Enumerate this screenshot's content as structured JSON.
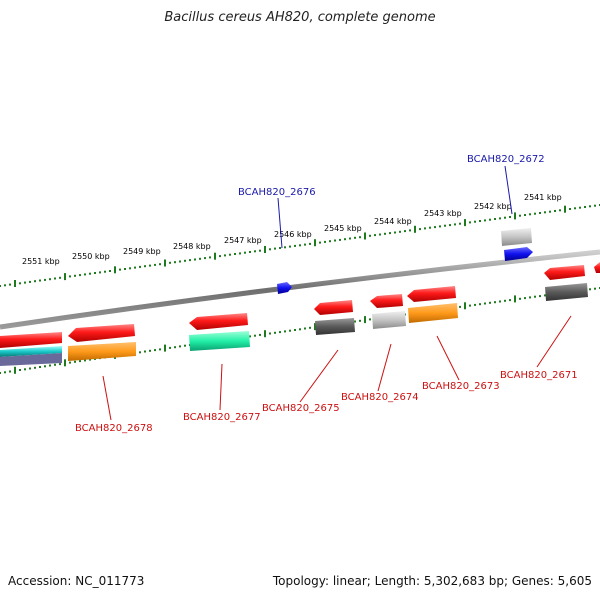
{
  "title": "Bacillus cereus AH820, complete genome",
  "footer": {
    "accession": "Accession: NC_011773",
    "topology": "Topology: linear; Length: 5,302,683 bp; Genes: 5,605"
  },
  "colors": {
    "forward_label": "#1a1aaa",
    "reverse_label": "#cc1111",
    "forward_gene": "#1414e6",
    "reverse_gene": "#ee1111",
    "scale_ticks": "#1f7a1f",
    "backbone": "#777777"
  },
  "scale_labels": [
    "2551 kbp",
    "2550 kbp",
    "2549 kbp",
    "2548 kbp",
    "2547 kbp",
    "2546 kbp",
    "2545 kbp",
    "2544 kbp",
    "2543 kbp",
    "2542 kbp",
    "2541 kbp"
  ],
  "genes": [
    {
      "label": "BCAH820_2672",
      "strand": "forward"
    },
    {
      "label": "BCAH820_2676",
      "strand": "forward"
    },
    {
      "label": "BCAH820_2671",
      "strand": "reverse"
    },
    {
      "label": "BCAH820_2673",
      "strand": "reverse"
    },
    {
      "label": "BCAH820_2674",
      "strand": "reverse"
    },
    {
      "label": "BCAH820_2675",
      "strand": "reverse"
    },
    {
      "label": "BCAH820_2677",
      "strand": "reverse"
    },
    {
      "label": "BCAH820_2678",
      "strand": "reverse"
    }
  ]
}
